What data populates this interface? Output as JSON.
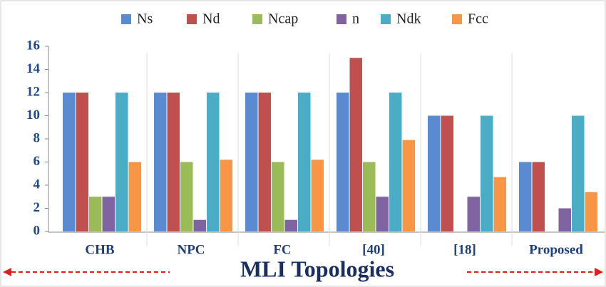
{
  "chart_data": {
    "type": "bar",
    "categories": [
      "CHB",
      "NPC",
      "FC",
      "[40]",
      "[18]",
      "Proposed"
    ],
    "x_label": "MLI Topologies",
    "series": [
      {
        "name": "Ns",
        "color": "#5a8ad0",
        "values": [
          12,
          12,
          12,
          12,
          10,
          6
        ]
      },
      {
        "name": "Nd",
        "color": "#c0504d",
        "values": [
          12,
          12,
          12,
          15,
          10,
          6
        ]
      },
      {
        "name": "Ncap",
        "color": "#9bbb59",
        "values": [
          3,
          6,
          6,
          6,
          null,
          null
        ]
      },
      {
        "name": "n",
        "color": "#8064a2",
        "values": [
          3,
          1,
          1,
          3,
          3,
          2
        ]
      },
      {
        "name": "Ndk",
        "color": "#4bacc6",
        "values": [
          12,
          12,
          12,
          12,
          10,
          10
        ]
      },
      {
        "name": "Fcc",
        "color": "#f79646",
        "values": [
          6,
          6.2,
          6.2,
          7.9,
          4.7,
          3.4
        ]
      }
    ],
    "ylim": [
      0,
      16
    ],
    "yticks": [
      0,
      2,
      4,
      6,
      8,
      10,
      12,
      14,
      16
    ]
  }
}
